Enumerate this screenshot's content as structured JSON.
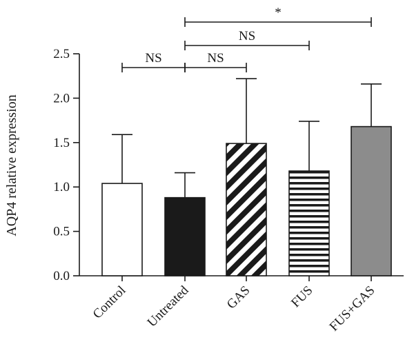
{
  "chart_data": {
    "type": "bar",
    "title": "",
    "xlabel": "",
    "ylabel": "AQP4 relative expression",
    "ylim": [
      0,
      2.5
    ],
    "yticks": [
      "0.0",
      "0.5",
      "1.0",
      "1.5",
      "2.0",
      "2.5"
    ],
    "grid": false,
    "categories": [
      "Control",
      "Untreated",
      "GAS",
      "FUS",
      "FUS+GAS"
    ],
    "values": [
      1.04,
      0.88,
      1.49,
      1.18,
      1.68
    ],
    "error_upper": [
      0.55,
      0.28,
      0.73,
      0.56,
      0.48
    ],
    "bar_styles": [
      {
        "fill": "#ffffff",
        "pattern": "none"
      },
      {
        "fill": "#1a1a1a",
        "pattern": "none"
      },
      {
        "fill": "#ffffff",
        "pattern": "diagonal-stripes"
      },
      {
        "fill": "#ffffff",
        "pattern": "horizontal-stripes"
      },
      {
        "fill": "#8c8c8c",
        "pattern": "none"
      }
    ],
    "significance": [
      {
        "from": "Control",
        "to": "Untreated",
        "label": "NS"
      },
      {
        "from": "Untreated",
        "to": "GAS",
        "label": "NS"
      },
      {
        "from": "Untreated",
        "to": "FUS",
        "label": "NS"
      },
      {
        "from": "Untreated",
        "to": "FUS+GAS",
        "label": "*"
      }
    ]
  },
  "colors": {
    "ink": "#1a1a1a",
    "gray_bar": "#8c8c8c",
    "background": "#ffffff"
  }
}
